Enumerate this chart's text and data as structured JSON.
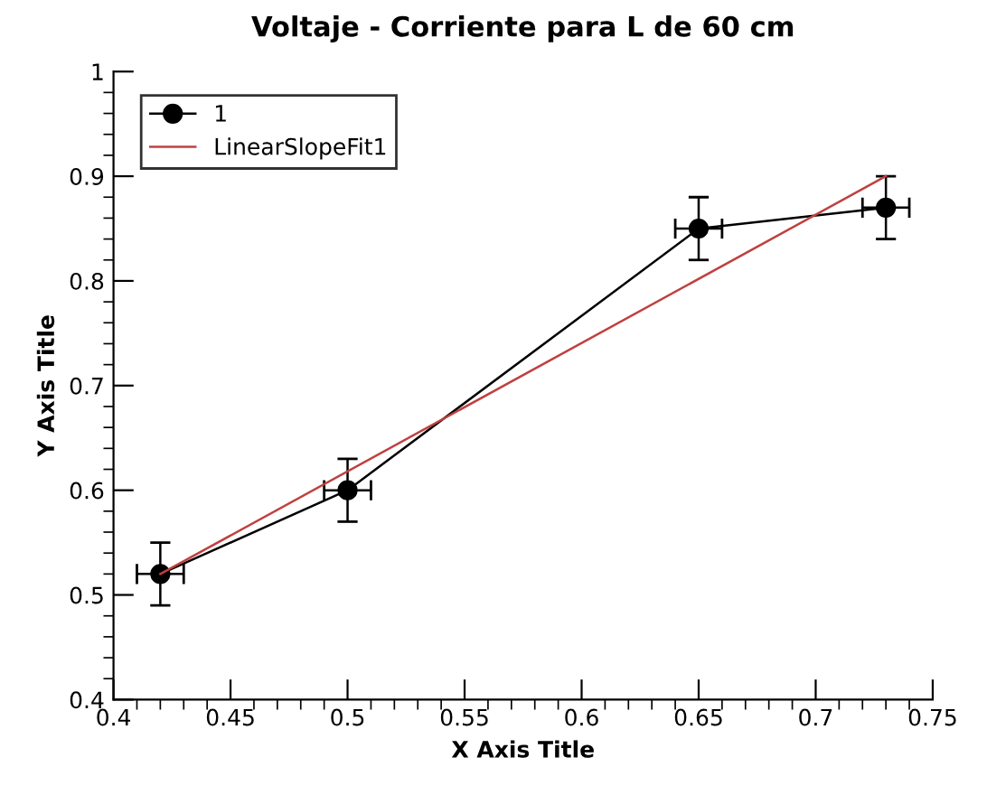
{
  "chart_data": {
    "type": "line",
    "title": "Voltaje - Corriente para L de 60 cm",
    "xlabel": "X Axis Title",
    "ylabel": "Y Axis Title",
    "series": [
      {
        "name": "1",
        "color": "#000000",
        "marker": "circle",
        "x": [
          0.42,
          0.5,
          0.65,
          0.73
        ],
        "values": [
          0.52,
          0.6,
          0.85,
          0.87
        ],
        "errors": [
          0.03,
          0.03,
          0.03,
          0.03
        ],
        "xerrors": [
          0.01,
          0.01,
          0.01,
          0.01
        ]
      },
      {
        "name": "LinearSlopeFit1",
        "color": "#c04040",
        "marker": "none",
        "x": [
          0.42,
          0.73
        ],
        "values": [
          0.52,
          0.9
        ]
      }
    ],
    "xlim": [
      0.4,
      0.75
    ],
    "xticks": [
      0.4,
      0.45,
      0.5,
      0.55,
      0.6,
      0.65,
      0.7,
      0.75
    ],
    "ylim": [
      0.4,
      1
    ],
    "yticks": [
      0.4,
      0.5,
      0.6,
      0.7,
      0.8,
      0.9,
      1
    ],
    "grid": false,
    "legend": "top left"
  }
}
